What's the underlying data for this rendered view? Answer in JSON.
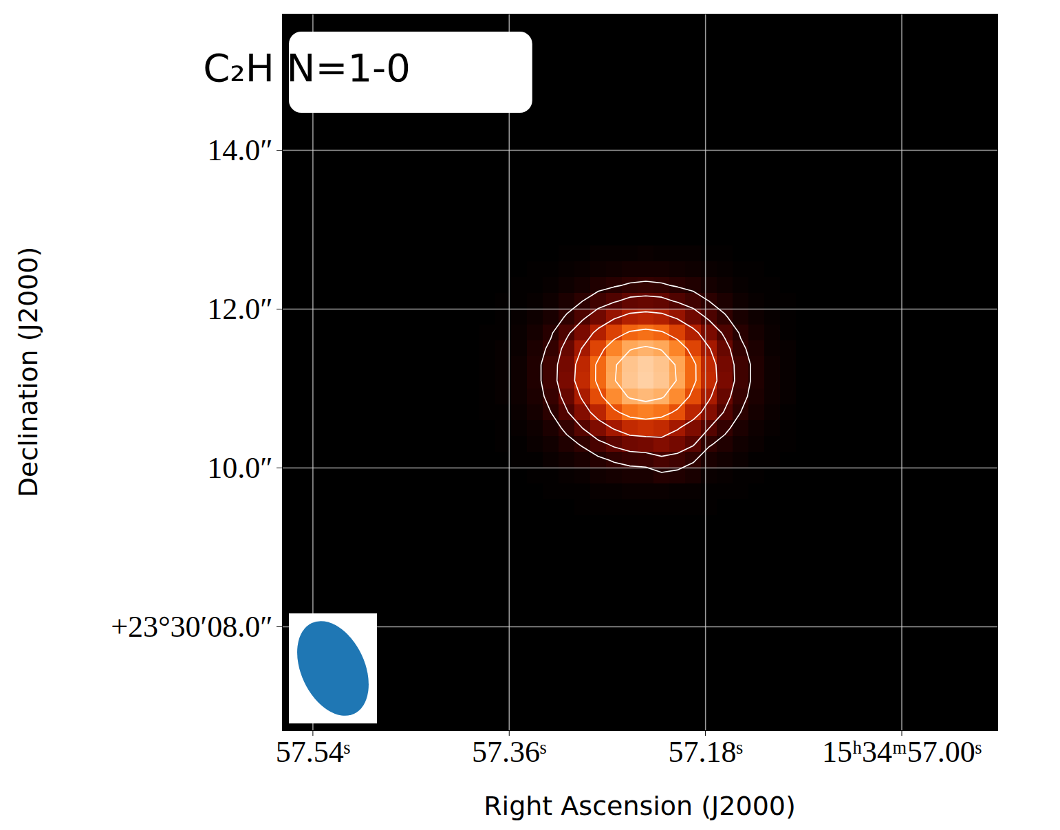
{
  "chart_data": {
    "type": "heatmap",
    "title": "C₂H N=1-0",
    "x_label": "Right Ascension (J2000)",
    "y_label": "Declination (J2000)",
    "xlim": [
      57.568,
      56.912
    ],
    "ylim": [
      6.693,
      15.714
    ],
    "xticks": [
      {
        "value": 57.54,
        "label": "57.54ˢ"
      },
      {
        "value": 57.36,
        "label": "57.36ˢ"
      },
      {
        "value": 57.18,
        "label": "57.18ˢ"
      },
      {
        "value": 57.0,
        "label": "15ʰ34ᵐ57.00ˢ"
      }
    ],
    "yticks": [
      {
        "value": 8,
        "label": "+23°30′08.0″"
      },
      {
        "value": 10,
        "label": "10.0″"
      },
      {
        "value": 12,
        "label": "12.0″"
      },
      {
        "value": 14,
        "label": "14.0″"
      }
    ],
    "grid": true,
    "color_range": [
      0,
      1
    ],
    "contour_levels": [
      0.12,
      0.22,
      0.38,
      0.6,
      0.82
    ],
    "beam": {
      "major": 1.26,
      "minor": 0.8,
      "pa": 25
    },
    "cells": {
      "ra_start": 57.387,
      "ra_step": -0.0145,
      "dec_start": 12.8,
      "dec_step": -0.2,
      "values": [
        [
          0,
          0,
          0,
          0,
          0,
          0.01,
          0.01,
          0.02,
          0.02,
          0.02,
          0.03,
          0.02,
          0.02,
          0.02,
          0.01,
          0.01,
          0,
          0,
          0,
          0
        ],
        [
          0,
          0,
          0,
          0.01,
          0.01,
          0.02,
          0.03,
          0.04,
          0.05,
          0.06,
          0.06,
          0.06,
          0.05,
          0.04,
          0.03,
          0.02,
          0.01,
          0.01,
          0,
          0
        ],
        [
          0,
          0,
          0.01,
          0.01,
          0.02,
          0.04,
          0.06,
          0.09,
          0.11,
          0.13,
          0.14,
          0.13,
          0.11,
          0.09,
          0.06,
          0.04,
          0.02,
          0.01,
          0.01,
          0
        ],
        [
          0,
          0.01,
          0.01,
          0.02,
          0.04,
          0.08,
          0.12,
          0.17,
          0.21,
          0.25,
          0.26,
          0.25,
          0.21,
          0.17,
          0.12,
          0.08,
          0.04,
          0.02,
          0.01,
          0.01
        ],
        [
          0,
          0.01,
          0.02,
          0.04,
          0.07,
          0.13,
          0.2,
          0.28,
          0.36,
          0.42,
          0.44,
          0.42,
          0.36,
          0.28,
          0.2,
          0.13,
          0.07,
          0.04,
          0.02,
          0.01
        ],
        [
          0.01,
          0.01,
          0.03,
          0.06,
          0.11,
          0.2,
          0.3,
          0.42,
          0.53,
          0.62,
          0.65,
          0.62,
          0.53,
          0.42,
          0.3,
          0.2,
          0.11,
          0.06,
          0.03,
          0.01
        ],
        [
          0.01,
          0.02,
          0.03,
          0.08,
          0.14,
          0.26,
          0.39,
          0.54,
          0.7,
          0.81,
          0.85,
          0.81,
          0.7,
          0.54,
          0.39,
          0.26,
          0.14,
          0.08,
          0.03,
          0.02
        ],
        [
          0.01,
          0.02,
          0.04,
          0.09,
          0.17,
          0.29,
          0.45,
          0.63,
          0.8,
          0.93,
          0.98,
          0.93,
          0.8,
          0.63,
          0.45,
          0.29,
          0.17,
          0.09,
          0.04,
          0.02
        ],
        [
          0.01,
          0.02,
          0.04,
          0.09,
          0.17,
          0.3,
          0.46,
          0.63,
          0.81,
          0.94,
          0.99,
          0.94,
          0.81,
          0.63,
          0.46,
          0.3,
          0.17,
          0.09,
          0.04,
          0.02
        ],
        [
          0.01,
          0.02,
          0.04,
          0.08,
          0.15,
          0.26,
          0.4,
          0.56,
          0.72,
          0.84,
          0.88,
          0.84,
          0.72,
          0.56,
          0.4,
          0.26,
          0.15,
          0.08,
          0.04,
          0.02
        ],
        [
          0.01,
          0.01,
          0.03,
          0.06,
          0.12,
          0.21,
          0.32,
          0.44,
          0.57,
          0.66,
          0.69,
          0.66,
          0.57,
          0.44,
          0.32,
          0.21,
          0.12,
          0.06,
          0.03,
          0.01
        ],
        [
          0,
          0.01,
          0.02,
          0.04,
          0.08,
          0.14,
          0.22,
          0.31,
          0.39,
          0.46,
          0.48,
          0.46,
          0.39,
          0.31,
          0.22,
          0.14,
          0.08,
          0.04,
          0.02,
          0.01
        ],
        [
          0,
          0.01,
          0.01,
          0.03,
          0.05,
          0.09,
          0.13,
          0.19,
          0.24,
          0.28,
          0.29,
          0.32,
          0.29,
          0.23,
          0.13,
          0.09,
          0.05,
          0.03,
          0.01,
          0.01
        ],
        [
          0,
          0,
          0.01,
          0.01,
          0.03,
          0.05,
          0.07,
          0.1,
          0.13,
          0.15,
          0.16,
          0.19,
          0.17,
          0.13,
          0.07,
          0.05,
          0.03,
          0.01,
          0.01,
          0
        ],
        [
          0,
          0,
          0,
          0.01,
          0.01,
          0.02,
          0.03,
          0.05,
          0.06,
          0.07,
          0.07,
          0.1,
          0.09,
          0.07,
          0.03,
          0.02,
          0.01,
          0.01,
          0,
          0
        ],
        [
          0,
          0,
          0,
          0,
          0.01,
          0.01,
          0.01,
          0.02,
          0.02,
          0.03,
          0.03,
          0.03,
          0.02,
          0.02,
          0.01,
          0.01,
          0.01,
          0,
          0,
          0
        ],
        [
          0,
          0,
          0,
          0,
          0,
          0,
          0.01,
          0.01,
          0.01,
          0.01,
          0.01,
          0.01,
          0.01,
          0.01,
          0.01,
          0,
          0,
          0,
          0,
          0
        ],
        [
          0,
          0,
          0,
          0,
          0,
          0,
          0,
          0,
          0,
          0,
          0,
          0,
          0,
          0,
          0,
          0,
          0,
          0,
          0,
          0
        ]
      ]
    }
  }
}
